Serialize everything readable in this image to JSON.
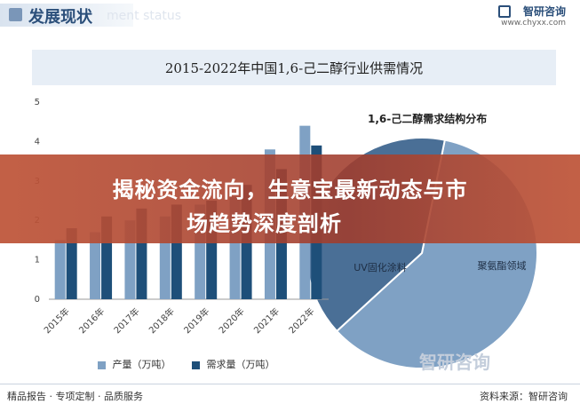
{
  "header": {
    "title": "发展现状",
    "subtitle_en": "ment status",
    "brand_name": "智研咨询",
    "brand_url": "www.chyxx.com"
  },
  "chart_title": "2015-2022年中国1,6-己二醇行业供需情况",
  "pie_title": "1,6-己二醇需求结构分布",
  "banner": {
    "line1": "揭秘资金流向，生意宝最新动态与市",
    "line2": "场趋势深度剖析"
  },
  "watermark": "智研咨询",
  "footer": {
    "left": "精品报告 · 专项定制 · 品质服务",
    "right": "资料来源：智研咨询"
  },
  "colors": {
    "production": "#7fa1c4",
    "demand": "#1e4f79",
    "pie_light": "#7fa1c4",
    "pie_dark": "#4a6f96",
    "banner": "#b85038"
  },
  "chart_data": [
    {
      "type": "bar",
      "categories": [
        "2015年",
        "2016年",
        "2017年",
        "2018年",
        "2019年",
        "2020年",
        "2021年",
        "2022年"
      ],
      "series": [
        {
          "name": "产量（万吨）",
          "values": [
            1.5,
            1.7,
            2.0,
            2.1,
            2.4,
            2.6,
            3.8,
            4.4
          ]
        },
        {
          "name": "需求量（万吨）",
          "values": [
            1.8,
            2.1,
            2.3,
            2.4,
            2.5,
            2.9,
            3.3,
            3.9
          ]
        }
      ],
      "ylim": [
        0,
        5
      ],
      "yticks": [
        "0",
        "0.5",
        "1",
        "1.5",
        "2",
        "2.5",
        "3",
        "3.5",
        "4",
        "4.5",
        "5"
      ],
      "legend": "bottom"
    },
    {
      "type": "pie",
      "title": "1,6-己二醇需求结构分布",
      "slices": [
        {
          "label": "聚氨酯领域",
          "value": 60
        },
        {
          "label": "UV固化涂料",
          "value": 40
        }
      ]
    }
  ]
}
